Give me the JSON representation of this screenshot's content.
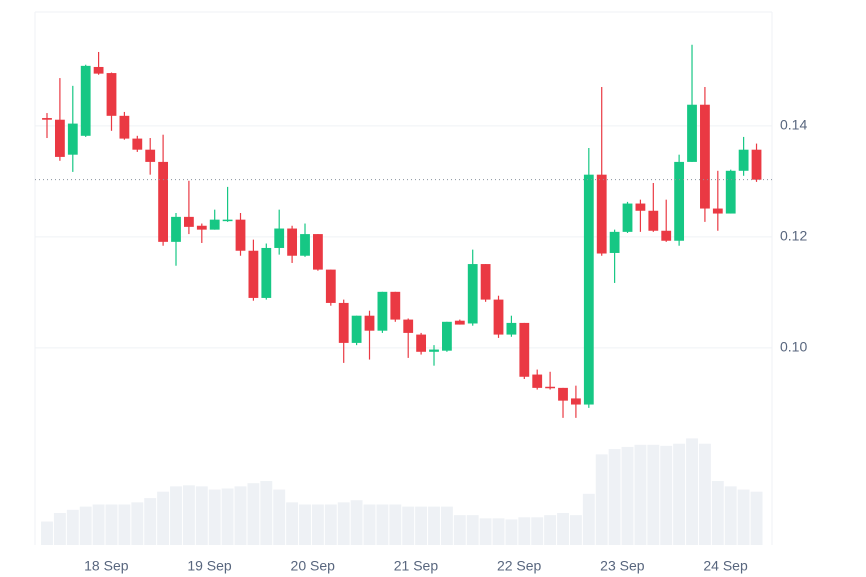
{
  "chart_data": {
    "type": "candlestick",
    "x": [
      0,
      1,
      2,
      3,
      4,
      5,
      6,
      7,
      8,
      9,
      10,
      11,
      12,
      13,
      14,
      15,
      16,
      17,
      18,
      19,
      20,
      21,
      22,
      23,
      24,
      25,
      26,
      27,
      28,
      29,
      30,
      31,
      32,
      33,
      34,
      35,
      36,
      37,
      38,
      39,
      40,
      41,
      42,
      43,
      44,
      45,
      46,
      47,
      48,
      49,
      50,
      51,
      52,
      53,
      54,
      55
    ],
    "open": [
      0.1414,
      0.1411,
      0.1348,
      0.1382,
      0.1506,
      0.1495,
      0.1418,
      0.1377,
      0.1357,
      0.1335,
      0.1191,
      0.1236,
      0.122,
      0.1213,
      0.1229,
      0.1231,
      0.1175,
      0.109,
      0.118,
      0.1215,
      0.1166,
      0.1205,
      0.1141,
      0.1081,
      0.1009,
      0.1058,
      0.1031,
      0.1101,
      0.1051,
      0.1024,
      0.0993,
      0.0995,
      0.1049,
      0.1044,
      0.1151,
      0.1087,
      0.1024,
      0.1045,
      0.0952,
      0.093,
      0.0928,
      0.0909,
      0.0898,
      0.1312,
      0.1171,
      0.1209,
      0.126,
      0.1247,
      0.1211,
      0.1193,
      0.1335,
      0.1438,
      0.1251,
      0.1242,
      0.1319,
      0.1357
    ],
    "high": [
      0.1423,
      0.1486,
      0.1472,
      0.151,
      0.1533,
      0.1496,
      0.1425,
      0.1382,
      0.1378,
      0.1384,
      0.1243,
      0.1301,
      0.1224,
      0.1249,
      0.129,
      0.1243,
      0.1195,
      0.1188,
      0.1249,
      0.122,
      0.1224,
      0.1205,
      0.1141,
      0.1087,
      0.1058,
      0.1067,
      0.1101,
      0.1101,
      0.1053,
      0.1027,
      0.1005,
      0.1047,
      0.1051,
      0.1177,
      0.1151,
      0.1094,
      0.1058,
      0.1045,
      0.0961,
      0.0957,
      0.0928,
      0.0932,
      0.136,
      0.147,
      0.1213,
      0.1263,
      0.1267,
      0.1297,
      0.1267,
      0.1348,
      0.1546,
      0.147,
      0.1319,
      0.1321,
      0.138,
      0.1368
    ],
    "low": [
      0.1378,
      0.1337,
      0.1317,
      0.138,
      0.1492,
      0.1391,
      0.1375,
      0.1353,
      0.1312,
      0.1184,
      0.1148,
      0.1205,
      0.1189,
      0.1213,
      0.1227,
      0.1166,
      0.1085,
      0.1087,
      0.1168,
      0.1153,
      0.1164,
      0.1139,
      0.1076,
      0.0973,
      0.1005,
      0.0979,
      0.1027,
      0.1047,
      0.0982,
      0.0988,
      0.0968,
      0.0993,
      0.1042,
      0.104,
      0.1083,
      0.1018,
      0.102,
      0.0944,
      0.0925,
      0.0925,
      0.0874,
      0.0874,
      0.0892,
      0.1166,
      0.1117,
      0.1207,
      0.1209,
      0.1209,
      0.1191,
      0.1184,
      0.1335,
      0.1227,
      0.1211,
      0.1242,
      0.131,
      0.1299
    ],
    "close": [
      0.1411,
      0.1344,
      0.1404,
      0.1508,
      0.1494,
      0.1418,
      0.1377,
      0.1357,
      0.1335,
      0.1191,
      0.1236,
      0.1218,
      0.1213,
      0.1231,
      0.1231,
      0.1175,
      0.109,
      0.118,
      0.1215,
      0.1166,
      0.1205,
      0.1141,
      0.1081,
      0.1009,
      0.1058,
      0.1031,
      0.1101,
      0.1051,
      0.1027,
      0.0993,
      0.0997,
      0.1047,
      0.1042,
      0.1151,
      0.1087,
      0.1024,
      0.1045,
      0.0948,
      0.0928,
      0.0928,
      0.0905,
      0.0898,
      0.1312,
      0.117,
      0.1209,
      0.126,
      0.1247,
      0.1211,
      0.1193,
      0.1335,
      0.1438,
      0.1251,
      0.1242,
      0.1319,
      0.1357,
      0.1303
    ],
    "volume": [
      22,
      30,
      33,
      36,
      38,
      38,
      38,
      40,
      44,
      50,
      55,
      56,
      55,
      52,
      53,
      55,
      58,
      60,
      52,
      40,
      38,
      38,
      38,
      40,
      42,
      38,
      38,
      38,
      36,
      36,
      36,
      36,
      28,
      28,
      25,
      25,
      24,
      26,
      26,
      28,
      30,
      28,
      48,
      85,
      90,
      92,
      94,
      94,
      93,
      95,
      100,
      95,
      60,
      55,
      52,
      50
    ],
    "up_color": "#16c784",
    "down_color": "#ea3943",
    "volume_color": "#eef1f5",
    "xlim": [
      -0.93,
      56.2
    ],
    "xticks": [
      {
        "value": 4.6,
        "label": "18 Sep"
      },
      {
        "value": 12.6,
        "label": "19 Sep"
      },
      {
        "value": 20.6,
        "label": "20 Sep"
      },
      {
        "value": 28.6,
        "label": "21 Sep"
      },
      {
        "value": 36.6,
        "label": "22 Sep"
      },
      {
        "value": 44.6,
        "label": "23 Sep"
      },
      {
        "value": 52.6,
        "label": "24 Sep"
      }
    ],
    "ylim": [
      0.0645,
      0.1605
    ],
    "yticks": [
      {
        "value": 0.1,
        "label": "0.10"
      },
      0.12,
      0.14
    ],
    "y2lim": [
      0,
      500
    ],
    "grid": true
  }
}
